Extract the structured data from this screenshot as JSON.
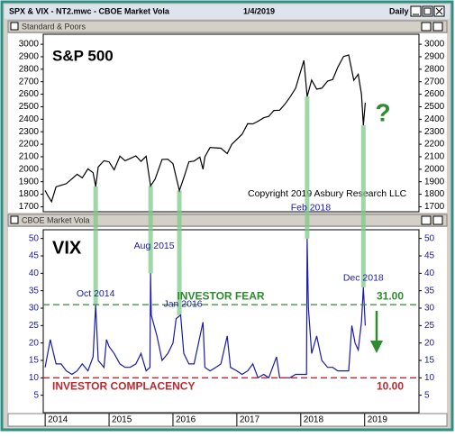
{
  "window": {
    "title": "SPX & VIX - NT2.mwc - CBOE Market Vola",
    "date": "1/4/2019",
    "interval": "Daily"
  },
  "chart_data": [
    {
      "type": "line",
      "title": "Standard & Poors",
      "label": "S&P 500",
      "annotation": "?",
      "copyright": "Copyright 2019 Asbury Research LLC",
      "color": "#000000",
      "x": [
        2014.0,
        2014.04,
        2014.1,
        2014.17,
        2014.25,
        2014.33,
        2014.42,
        2014.5,
        2014.58,
        2014.67,
        2014.75,
        2014.79,
        2014.83,
        2014.92,
        2015.0,
        2015.08,
        2015.17,
        2015.25,
        2015.33,
        2015.42,
        2015.5,
        2015.58,
        2015.65,
        2015.72,
        2015.83,
        2015.92,
        2016.0,
        2016.1,
        2016.17,
        2016.25,
        2016.33,
        2016.42,
        2016.47,
        2016.5,
        2016.58,
        2016.67,
        2016.75,
        2016.85,
        2016.92,
        2017.0,
        2017.08,
        2017.17,
        2017.25,
        2017.33,
        2017.42,
        2017.5,
        2017.58,
        2017.67,
        2017.75,
        2017.83,
        2017.92,
        2018.05,
        2018.1,
        2018.17,
        2018.25,
        2018.33,
        2018.42,
        2018.5,
        2018.58,
        2018.67,
        2018.75,
        2018.83,
        2018.9,
        2018.95,
        2018.98,
        2019.01
      ],
      "values": [
        1830,
        1790,
        1741,
        1860,
        1872,
        1884,
        1924,
        1960,
        1931,
        2003,
        1972,
        1862,
        2018,
        2068,
        2059,
        1995,
        2105,
        2068,
        2086,
        2107,
        2063,
        2104,
        1867,
        1920,
        2079,
        2080,
        2044,
        1829,
        1932,
        2060,
        2065,
        2097,
        2000,
        2099,
        2174,
        2171,
        2168,
        2126,
        2199,
        2239,
        2279,
        2364,
        2363,
        2384,
        2412,
        2423,
        2470,
        2472,
        2519,
        2575,
        2648,
        2870,
        2581,
        2714,
        2641,
        2648,
        2705,
        2718,
        2816,
        2902,
        2914,
        2712,
        2760,
        2600,
        2351,
        2532
      ],
      "xlim": [
        2013.97,
        2019.85
      ],
      "ylim": [
        1660,
        3080
      ],
      "yticks": [
        1700,
        1800,
        1900,
        2000,
        2100,
        2200,
        2300,
        2400,
        2500,
        2600,
        2700,
        2800,
        2900,
        3000
      ]
    },
    {
      "type": "line",
      "title": "CBOE Market Vola",
      "label": "VIX",
      "color": "#1a1aa8",
      "x": [
        2014.0,
        2014.08,
        2014.17,
        2014.25,
        2014.33,
        2014.42,
        2014.5,
        2014.58,
        2014.67,
        2014.75,
        2014.79,
        2014.83,
        2014.92,
        2014.96,
        2015.0,
        2015.08,
        2015.17,
        2015.25,
        2015.33,
        2015.42,
        2015.5,
        2015.58,
        2015.64,
        2015.65,
        2015.66,
        2015.75,
        2015.83,
        2015.92,
        2016.0,
        2016.05,
        2016.12,
        2016.17,
        2016.25,
        2016.33,
        2016.47,
        2016.5,
        2016.58,
        2016.67,
        2016.75,
        2016.85,
        2016.9,
        2017.0,
        2017.08,
        2017.17,
        2017.25,
        2017.33,
        2017.42,
        2017.5,
        2017.62,
        2017.67,
        2017.75,
        2017.83,
        2017.92,
        2018.0,
        2018.09,
        2018.1,
        2018.12,
        2018.17,
        2018.25,
        2018.33,
        2018.42,
        2018.5,
        2018.58,
        2018.67,
        2018.75,
        2018.8,
        2018.85,
        2018.9,
        2018.95,
        2018.98,
        2019.01
      ],
      "values": [
        13,
        21,
        14,
        14,
        12,
        11,
        12,
        14,
        12,
        16,
        31,
        15,
        13,
        21,
        19,
        17,
        14,
        13,
        13,
        14,
        17,
        12,
        13,
        40,
        28,
        22,
        15,
        17,
        20,
        27,
        28,
        17,
        14,
        14,
        26,
        13,
        12,
        13,
        14,
        22,
        13,
        12,
        11,
        12,
        14,
        10,
        11,
        10,
        16,
        10,
        10,
        10,
        11,
        11,
        11,
        50,
        30,
        17,
        22,
        15,
        13,
        13,
        12,
        12,
        12,
        25,
        20,
        18,
        26,
        36,
        25
      ],
      "xlim": [
        2013.97,
        2019.85
      ],
      "ylim": [
        0,
        52.5
      ],
      "xticks": [
        2014,
        2015,
        2016,
        2017,
        2018,
        2019
      ],
      "yticks": [
        5,
        10,
        15,
        20,
        25,
        30,
        35,
        40,
        45,
        50
      ],
      "hlines": [
        {
          "value": 31,
          "value_label": "31.00",
          "label": "INVESTOR FEAR",
          "color": "#2e8b2e"
        },
        {
          "value": 10,
          "value_label": "10.00",
          "label": "INVESTOR COMPLACENCY",
          "color": "#c0282d"
        }
      ],
      "annotations": [
        {
          "label": "Oct 2014",
          "x": 2014.79,
          "y": 31
        },
        {
          "label": "Aug 2015",
          "x": 2015.65,
          "y": 40
        },
        {
          "label": "Jan 2016",
          "x": 2016.1,
          "y": 28
        },
        {
          "label": "Feb 2018",
          "x": 2018.1,
          "y": 50
        },
        {
          "label": "Dec 2018",
          "x": 2018.98,
          "y": 36
        }
      ]
    }
  ]
}
